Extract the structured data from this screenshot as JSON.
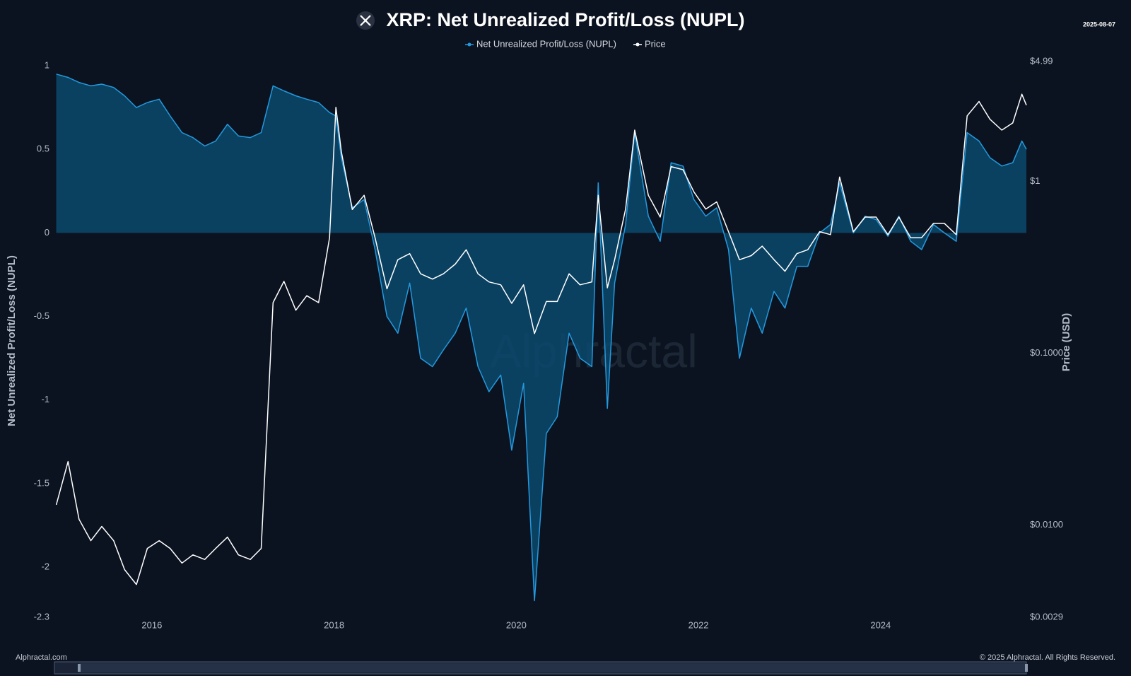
{
  "chart_data": {
    "type": "line",
    "title": "XRP: Net Unrealized Profit/Loss (NUPL)",
    "date": "2025-08-07",
    "watermark": "Alphractal",
    "source": "Alphractal.com",
    "copyright": "© 2025 Alphractal. All Rights Reserved.",
    "y_label": "Net Unrealized Profit/Loss (NUPL)",
    "y2_label": "Price (USD)",
    "x": [
      2014.95,
      2015.08,
      2015.2,
      2015.33,
      2015.45,
      2015.58,
      2015.7,
      2015.83,
      2015.95,
      2016.08,
      2016.2,
      2016.33,
      2016.45,
      2016.58,
      2016.7,
      2016.83,
      2016.95,
      2017.08,
      2017.2,
      2017.33,
      2017.45,
      2017.58,
      2017.7,
      2017.83,
      2017.95,
      2018.02,
      2018.08,
      2018.2,
      2018.33,
      2018.45,
      2018.58,
      2018.7,
      2018.83,
      2018.95,
      2019.08,
      2019.2,
      2019.33,
      2019.45,
      2019.58,
      2019.7,
      2019.83,
      2019.95,
      2020.08,
      2020.2,
      2020.33,
      2020.45,
      2020.58,
      2020.7,
      2020.83,
      2020.9,
      2021.0,
      2021.08,
      2021.2,
      2021.3,
      2021.45,
      2021.58,
      2021.7,
      2021.83,
      2021.95,
      2022.08,
      2022.2,
      2022.33,
      2022.45,
      2022.58,
      2022.7,
      2022.83,
      2022.95,
      2023.08,
      2023.2,
      2023.33,
      2023.45,
      2023.55,
      2023.7,
      2023.83,
      2023.95,
      2024.08,
      2024.2,
      2024.33,
      2024.45,
      2024.58,
      2024.7,
      2024.83,
      2024.95,
      2025.08,
      2025.2,
      2025.33,
      2025.45,
      2025.55,
      2025.6
    ],
    "series": [
      {
        "name": "Net Unrealized Profit/Loss (NUPL)",
        "color": "#2499de",
        "area_color": "#0b4a6d",
        "axis": "y",
        "values": [
          0.95,
          0.93,
          0.9,
          0.88,
          0.89,
          0.87,
          0.82,
          0.75,
          0.78,
          0.8,
          0.7,
          0.6,
          0.57,
          0.52,
          0.55,
          0.65,
          0.58,
          0.57,
          0.6,
          0.88,
          0.85,
          0.82,
          0.8,
          0.78,
          0.72,
          0.7,
          0.45,
          0.15,
          0.2,
          -0.1,
          -0.5,
          -0.6,
          -0.3,
          -0.75,
          -0.8,
          -0.7,
          -0.6,
          -0.45,
          -0.8,
          -0.95,
          -0.85,
          -1.3,
          -0.9,
          -2.2,
          -1.2,
          -1.1,
          -0.6,
          -0.75,
          -0.8,
          0.3,
          -1.05,
          -0.3,
          0.05,
          0.6,
          0.1,
          -0.05,
          0.42,
          0.4,
          0.2,
          0.1,
          0.15,
          -0.1,
          -0.75,
          -0.45,
          -0.6,
          -0.35,
          -0.45,
          -0.2,
          -0.2,
          0.0,
          0.05,
          0.3,
          0.0,
          0.1,
          0.08,
          -0.02,
          0.1,
          -0.05,
          -0.1,
          0.05,
          0.0,
          -0.05,
          0.6,
          0.55,
          0.45,
          0.4,
          0.42,
          0.55,
          0.5
        ]
      },
      {
        "name": "Price",
        "color": "#ffffff",
        "axis": "y2",
        "values": [
          0.0131,
          0.0234,
          0.0108,
          0.0081,
          0.0098,
          0.0081,
          0.0055,
          0.0045,
          0.0073,
          0.0081,
          0.0073,
          0.006,
          0.0067,
          0.0063,
          0.0073,
          0.0085,
          0.0067,
          0.0063,
          0.0073,
          0.197,
          0.262,
          0.178,
          0.216,
          0.197,
          0.47,
          2.7,
          1.49,
          0.686,
          0.83,
          0.47,
          0.237,
          0.35,
          0.38,
          0.29,
          0.27,
          0.29,
          0.33,
          0.4,
          0.29,
          0.26,
          0.25,
          0.195,
          0.25,
          0.13,
          0.2,
          0.2,
          0.29,
          0.25,
          0.26,
          0.83,
          0.24,
          0.35,
          0.69,
          1.99,
          0.83,
          0.62,
          1.22,
          1.17,
          0.87,
          0.69,
          0.76,
          0.51,
          0.35,
          0.37,
          0.42,
          0.35,
          0.3,
          0.38,
          0.4,
          0.51,
          0.49,
          1.06,
          0.51,
          0.62,
          0.62,
          0.49,
          0.62,
          0.47,
          0.47,
          0.57,
          0.57,
          0.49,
          2.41,
          2.92,
          2.3,
          1.99,
          2.19,
          3.22,
          2.78
        ]
      }
    ],
    "xlim": [
      2014.93,
      2025.6
    ],
    "xticks": [
      2016,
      2018,
      2020,
      2022,
      2024
    ],
    "ylim": [
      -2.3,
      1
    ],
    "yticks": [
      1,
      0.5,
      0,
      -0.5,
      -1,
      -1.5,
      -2,
      -2.3
    ],
    "y2lim": [
      0.0029,
      4.99
    ],
    "y2_log": true,
    "y2ticks": [
      {
        "value": 4.99,
        "label": "$4.99"
      },
      {
        "value": 1,
        "label": "$1"
      },
      {
        "value": 0.1,
        "label": "$0.1000"
      },
      {
        "value": 0.01,
        "label": "$0.0100"
      },
      {
        "value": 0.0029,
        "label": "$0.0029"
      }
    ]
  }
}
